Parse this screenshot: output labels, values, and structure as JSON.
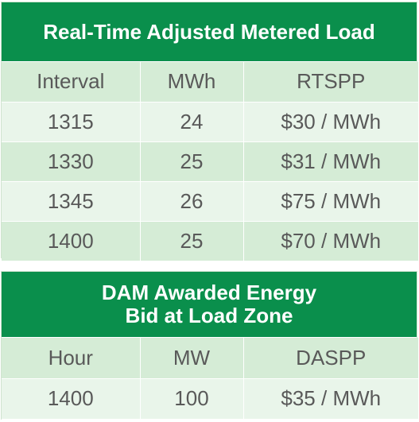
{
  "realtime": {
    "title": "Real-Time Adjusted Metered Load",
    "headers": [
      "Interval",
      "MWh",
      "RTSPP"
    ],
    "rows": [
      [
        "1315",
        "24",
        "$30 / MWh"
      ],
      [
        "1330",
        "25",
        "$31 / MWh"
      ],
      [
        "1345",
        "26",
        "$75 / MWh"
      ],
      [
        "1400",
        "25",
        "$70 / MWh"
      ]
    ]
  },
  "dam": {
    "title_line1": "DAM Awarded Energy",
    "title_line2": "Bid at Load Zone",
    "headers": [
      "Hour",
      "MW",
      "DASPP"
    ],
    "rows": [
      [
        "1400",
        "100",
        "$35 / MWh"
      ]
    ]
  },
  "colors": {
    "header_green": "#0a8f4c",
    "row_dark": "#d5ecd6",
    "row_light": "#e9f5ea",
    "text_gray": "#595959"
  }
}
